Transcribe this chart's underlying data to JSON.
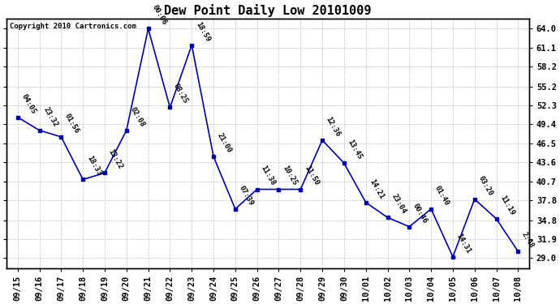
{
  "title": "Dew Point Daily Low 20101009",
  "copyright": "Copyright 2010 Cartronics.com",
  "line_color": "#0000bb",
  "marker_color": "#0000bb",
  "bg_color": "#ffffff",
  "grid_color": "#bbbbbb",
  "x_labels": [
    "09/15",
    "09/16",
    "09/17",
    "09/18",
    "09/19",
    "09/20",
    "09/21",
    "09/22",
    "09/23",
    "09/24",
    "09/25",
    "09/26",
    "09/27",
    "09/28",
    "09/29",
    "09/30",
    "10/01",
    "10/02",
    "10/03",
    "10/04",
    "10/05",
    "10/06",
    "10/07",
    "10/08"
  ],
  "y_values": [
    50.5,
    48.5,
    47.5,
    41.0,
    42.0,
    48.5,
    64.0,
    52.0,
    61.5,
    44.5,
    36.5,
    39.5,
    39.5,
    39.5,
    47.0,
    43.5,
    37.5,
    35.2,
    33.8,
    36.5,
    29.2,
    38.0,
    35.0,
    30.0
  ],
  "time_labels": [
    "04:05",
    "23:32",
    "01:56",
    "18:33",
    "13:22",
    "02:08",
    "00:06",
    "08:25",
    "18:59",
    "21:00",
    "07:39",
    "11:38",
    "10:25",
    "11:50",
    "12:36",
    "13:45",
    "14:21",
    "23:04",
    "00:46",
    "01:40",
    "14:31",
    "03:20",
    "11:19",
    "2:48"
  ],
  "ylim": [
    27.5,
    65.5
  ],
  "ytick_values": [
    29.0,
    31.9,
    34.8,
    37.8,
    40.7,
    43.6,
    46.5,
    49.4,
    52.3,
    55.2,
    58.2,
    61.1,
    64.0
  ],
  "ytick_labels": [
    "29.0",
    "31.9",
    "34.8",
    "37.8",
    "40.7",
    "43.6",
    "46.5",
    "49.4",
    "52.3",
    "55.2",
    "58.2",
    "61.1",
    "64.0"
  ],
  "title_fontsize": 11,
  "copyright_fontsize": 6.5,
  "label_fontsize": 6.5,
  "tick_fontsize": 7.5,
  "figwidth": 6.9,
  "figheight": 3.75,
  "dpi": 100
}
